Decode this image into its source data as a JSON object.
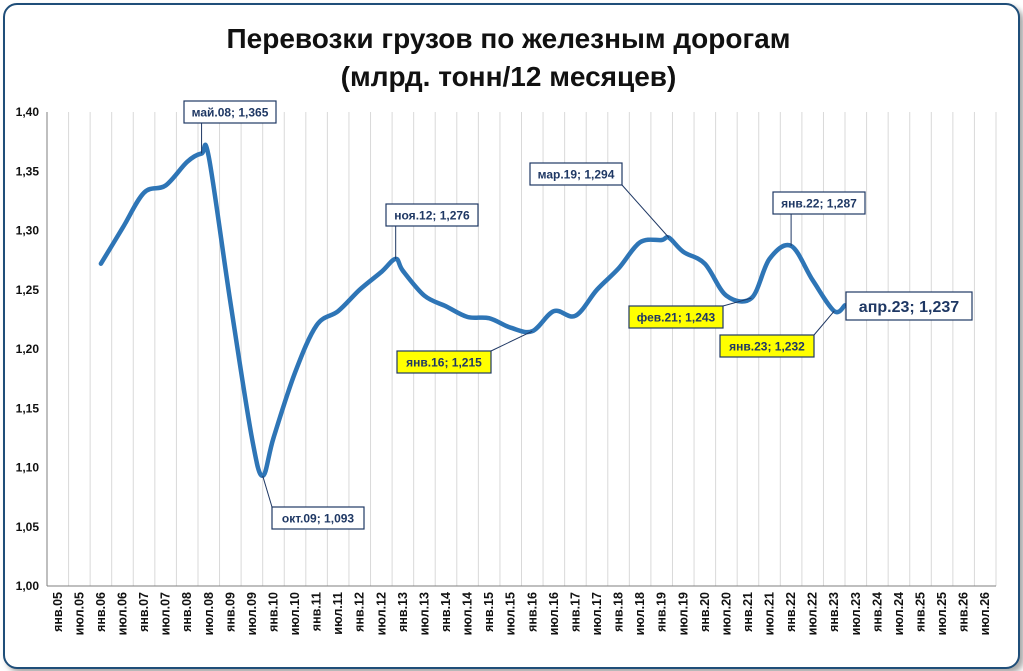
{
  "chart_data": {
    "type": "line",
    "title_lines": [
      "Перевозки грузов по железным дорогам",
      "(млрд. тонн/12 месяцев)"
    ],
    "ylim": [
      1.0,
      1.4
    ],
    "yticks": [
      "1,00",
      "1,05",
      "1,10",
      "1,15",
      "1,20",
      "1,25",
      "1,30",
      "1,35",
      "1,40"
    ],
    "yvalues": [
      1.0,
      1.05,
      1.1,
      1.15,
      1.2,
      1.25,
      1.3,
      1.35,
      1.4
    ],
    "xticks": [
      "янв.05",
      "июл.05",
      "янв.06",
      "июл.06",
      "янв.07",
      "июл.07",
      "янв.08",
      "июл.08",
      "янв.09",
      "июл.09",
      "янв.10",
      "июл.10",
      "янв.11",
      "июл.11",
      "янв.12",
      "июл.12",
      "янв.13",
      "июл.13",
      "янв.14",
      "июл.14",
      "янв.15",
      "июл.15",
      "янв.16",
      "июл.16",
      "янв.17",
      "июл.17",
      "янв.18",
      "июл.18",
      "янв.19",
      "июл.19",
      "янв.20",
      "июл.20",
      "янв.21",
      "июл.21",
      "янв.22",
      "июл.22",
      "янв.23",
      "июл.23",
      "янв.24",
      "июл.24",
      "янв.25",
      "июл.25",
      "янв.26",
      "июл.26"
    ],
    "grid": "vertical",
    "line_color": "#2e75b6",
    "series": [
      {
        "points": [
          [
            "янв.06",
            1.272
          ],
          [
            "июл.06",
            1.302
          ],
          [
            "янв.07",
            1.332
          ],
          [
            "июл.07",
            1.338
          ],
          [
            "янв.08",
            1.358
          ],
          [
            "май.08",
            1.365
          ],
          [
            "июл.08",
            1.362
          ],
          [
            "янв.09",
            1.24
          ],
          [
            "июл.09",
            1.125
          ],
          [
            "окт.09",
            1.093
          ],
          [
            "янв.10",
            1.125
          ],
          [
            "июл.10",
            1.18
          ],
          [
            "янв.11",
            1.22
          ],
          [
            "июл.11",
            1.232
          ],
          [
            "янв.12",
            1.25
          ],
          [
            "июл.12",
            1.265
          ],
          [
            "ноя.12",
            1.276
          ],
          [
            "янв.13",
            1.266
          ],
          [
            "июл.13",
            1.245
          ],
          [
            "янв.14",
            1.236
          ],
          [
            "июл.14",
            1.227
          ],
          [
            "янв.15",
            1.226
          ],
          [
            "июл.15",
            1.218
          ],
          [
            "янв.16",
            1.215
          ],
          [
            "июл.16",
            1.232
          ],
          [
            "янв.17",
            1.228
          ],
          [
            "июл.17",
            1.25
          ],
          [
            "янв.18",
            1.268
          ],
          [
            "июл.18",
            1.29
          ],
          [
            "янв.19",
            1.292
          ],
          [
            "мар.19",
            1.294
          ],
          [
            "июл.19",
            1.282
          ],
          [
            "янв.20",
            1.272
          ],
          [
            "июл.20",
            1.245
          ],
          [
            "фев.21",
            1.243
          ],
          [
            "июл.21",
            1.276
          ],
          [
            "янв.22",
            1.287
          ],
          [
            "июл.22",
            1.258
          ],
          [
            "янв.23",
            1.232
          ],
          [
            "апр.23",
            1.237
          ]
        ]
      }
    ],
    "annotations": [
      {
        "label": "май.08; 1,365",
        "style": "box"
      },
      {
        "label": "окт.09; 1,093",
        "style": "box"
      },
      {
        "label": "ноя.12; 1,276",
        "style": "box"
      },
      {
        "label": "янв.16; 1,215",
        "style": "yellow"
      },
      {
        "label": "мар.19; 1,294",
        "style": "box"
      },
      {
        "label": "фев.21; 1,243",
        "style": "yellow"
      },
      {
        "label": "янв.22; 1,287",
        "style": "box"
      },
      {
        "label": "янв.23; 1,232",
        "style": "yellow"
      },
      {
        "label": "апр.23; 1,237",
        "style": "large-box"
      }
    ]
  }
}
